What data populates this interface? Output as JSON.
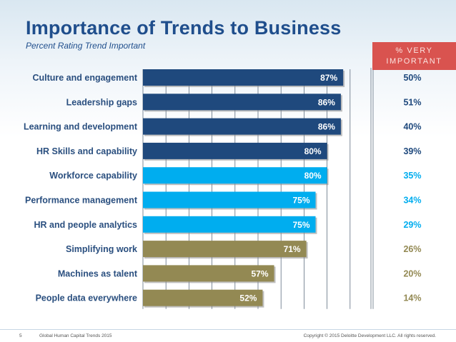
{
  "slide": {
    "title": "Importance of Trends to Business",
    "subtitle": "Percent Rating Trend Important",
    "very_header_line1": "% VERY",
    "very_header_line2": "IMPORTANT",
    "footer": {
      "page_number": "5",
      "source": "Global Human Capital Trends 2015",
      "copyright": "Copyright © 2015 Deloitte Development LLC. All rights reserved."
    }
  },
  "colors": {
    "dark_blue": "#1f497d",
    "light_blue": "#00adef",
    "olive": "#938953",
    "header_red": "#d9534f"
  },
  "chart_data": {
    "type": "bar",
    "orientation": "horizontal",
    "title": "Importance of Trends to Business",
    "subtitle": "Percent Rating Trend Important",
    "xlim": [
      0,
      100
    ],
    "grid": true,
    "categories": [
      "Culture and engagement",
      "Leadership gaps",
      "Learning and development",
      "HR Skills and capability",
      "Workforce capability",
      "Performance management",
      "HR and people analytics",
      "Simplifying work",
      "Machines as talent",
      "People data everywhere"
    ],
    "values": [
      87,
      86,
      86,
      80,
      80,
      75,
      75,
      71,
      57,
      52
    ],
    "value_labels": [
      "87%",
      "86%",
      "86%",
      "80%",
      "80%",
      "75%",
      "75%",
      "71%",
      "57%",
      "52%"
    ],
    "color_groups": [
      "dark_blue",
      "dark_blue",
      "dark_blue",
      "dark_blue",
      "light_blue",
      "light_blue",
      "light_blue",
      "olive",
      "olive",
      "olive"
    ],
    "very_important": {
      "header": "% VERY IMPORTANT",
      "values": [
        50,
        51,
        40,
        39,
        35,
        34,
        29,
        26,
        20,
        14
      ],
      "labels": [
        "50%",
        "51%",
        "40%",
        "39%",
        "35%",
        "34%",
        "29%",
        "26%",
        "20%",
        "14%"
      ]
    }
  }
}
